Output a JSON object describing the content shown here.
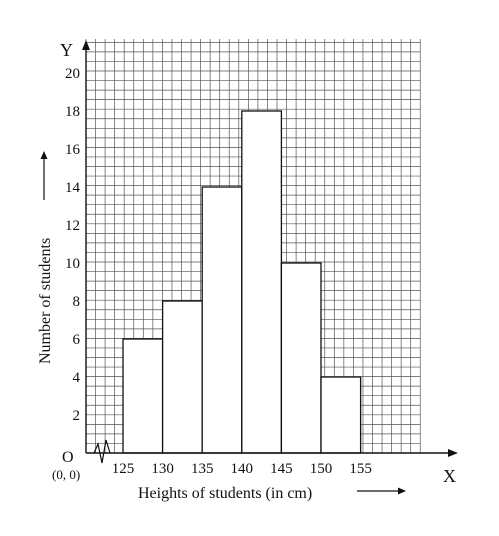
{
  "chart_data": {
    "type": "bar",
    "categories": [
      "125-130",
      "130-135",
      "135-140",
      "140-145",
      "145-150",
      "150-155"
    ],
    "bins": [
      {
        "from": 125,
        "to": 130,
        "value": 6
      },
      {
        "from": 130,
        "to": 135,
        "value": 8
      },
      {
        "from": 135,
        "to": 140,
        "value": 14
      },
      {
        "from": 140,
        "to": 145,
        "value": 18
      },
      {
        "from": 145,
        "to": 150,
        "value": 10
      },
      {
        "from": 150,
        "to": 155,
        "value": 4
      }
    ],
    "values": [
      6,
      8,
      14,
      18,
      10,
      4
    ],
    "x_ticks": [
      "125",
      "130",
      "135",
      "140",
      "145",
      "150",
      "155"
    ],
    "y_ticks": [
      "2",
      "4",
      "6",
      "8",
      "10",
      "12",
      "14",
      "16",
      "18",
      "20"
    ],
    "x_range": [
      120,
      160
    ],
    "ylim": [
      0,
      20
    ],
    "grid": true,
    "axis_break": true,
    "xlabel": "Heights of students (in cm)",
    "ylabel": "Number of students",
    "x_axis_letter": "X",
    "y_axis_letter": "Y",
    "origin_letter": "O",
    "origin_coords": "(0, 0)",
    "colors": {
      "bar_fill": "#ffffff",
      "bar_stroke": "#111111",
      "grid": "#555555",
      "axis": "#111111"
    }
  }
}
